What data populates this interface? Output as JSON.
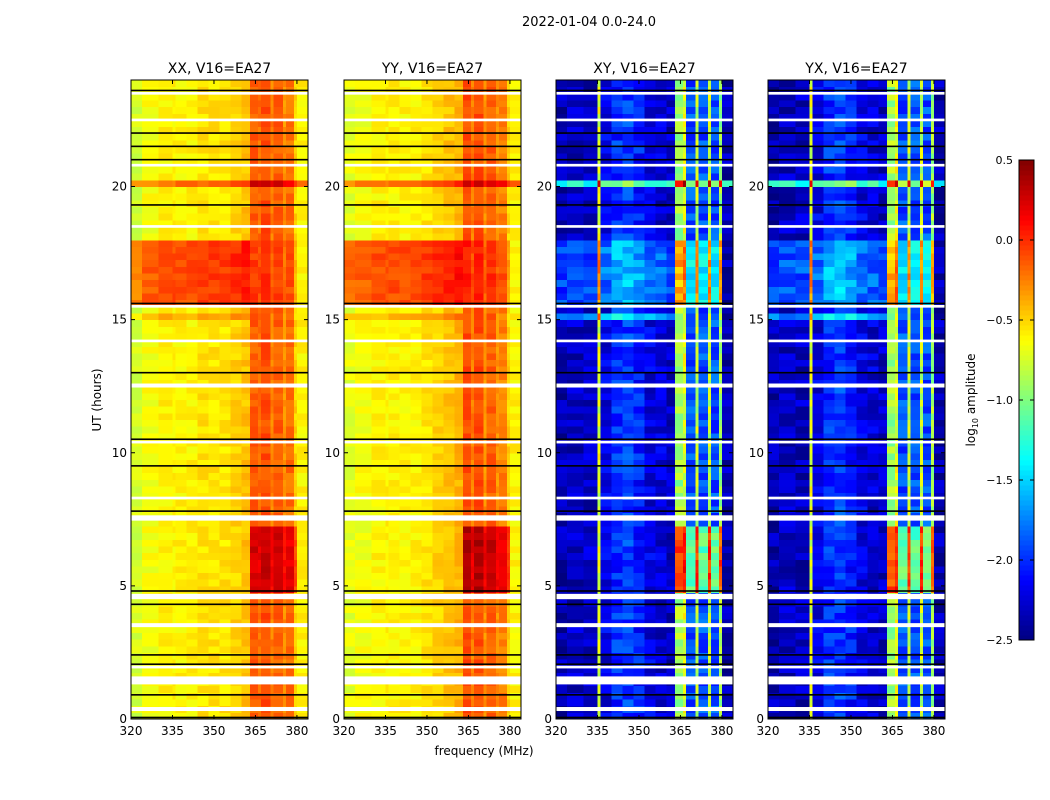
{
  "chart_data": {
    "type": "heatmap",
    "title": "2022-01-04 0.0-24.0",
    "xlabel": "frequency (MHz)",
    "ylabel": "UT (hours)",
    "xlim": [
      320,
      384
    ],
    "ylim": [
      0,
      24
    ],
    "xticks": [
      320,
      335,
      350,
      365,
      380
    ],
    "yticks": [
      0,
      5,
      10,
      15,
      20
    ],
    "colorbar": {
      "label_main": "log",
      "label_sub": "10",
      "label_rest": " amplitude",
      "vmin": -2.5,
      "vmax": 0.5,
      "cmap": "jet",
      "ticks": [
        0.5,
        0.0,
        -0.5,
        -1.0,
        -1.5,
        -2.0,
        -2.5
      ],
      "tick_labels": [
        "0.5",
        "0.0",
        "−0.5",
        "−1.0",
        "−1.5",
        "−2.0",
        "−2.5"
      ]
    },
    "time_step_hours": 0.25,
    "freq_edges": [
      320,
      324,
      330,
      335,
      336,
      340,
      344,
      348,
      352,
      356,
      360,
      363,
      366,
      367,
      370.5,
      371.5,
      375,
      376,
      379,
      380,
      384
    ],
    "panels": [
      {
        "title": "XX, V16=EA27",
        "base": [
          -0.75,
          -0.65,
          -0.6,
          -0.6,
          -0.6,
          -0.6,
          -0.55,
          -0.55,
          -0.55,
          -0.5,
          -0.45,
          -0.15,
          -0.2,
          -0.1,
          -0.25,
          -0.15,
          -0.3,
          -0.2,
          -0.5,
          -0.6
        ]
      },
      {
        "title": "YY, V16=EA27",
        "base": [
          -0.7,
          -0.65,
          -0.6,
          -0.6,
          -0.6,
          -0.6,
          -0.6,
          -0.55,
          -0.5,
          -0.45,
          -0.4,
          -0.1,
          -0.25,
          -0.1,
          -0.3,
          -0.15,
          -0.3,
          -0.25,
          -0.5,
          -0.6
        ]
      },
      {
        "title": "XY, V16=EA27",
        "base": [
          -2.35,
          -2.3,
          -2.3,
          -0.7,
          -2.2,
          -2.0,
          -1.95,
          -2.05,
          -2.2,
          -2.25,
          -2.3,
          -0.9,
          -0.7,
          -1.9,
          -0.8,
          -1.9,
          -0.8,
          -1.9,
          -0.9,
          -2.35
        ]
      },
      {
        "title": "YX, V16=EA27",
        "base": [
          -2.35,
          -2.3,
          -2.3,
          -0.7,
          -2.2,
          -2.0,
          -1.95,
          -2.05,
          -2.2,
          -2.25,
          -2.3,
          -0.9,
          -0.7,
          -1.9,
          -0.8,
          -1.9,
          -0.8,
          -1.9,
          -0.9,
          -2.35
        ]
      }
    ],
    "events": [
      {
        "t": [
          15.5,
          18.0
        ],
        "f": [
          320,
          362
        ],
        "delta": [
          0.5,
          0.5,
          0.4,
          0.4
        ]
      },
      {
        "t": [
          15.5,
          18.0
        ],
        "f": [
          362,
          381
        ],
        "delta": [
          0.1,
          0.15,
          0.5,
          0.5
        ]
      },
      {
        "t": [
          4.8,
          7.3
        ],
        "f": [
          362,
          381
        ],
        "delta": [
          0.4,
          0.45,
          0.8,
          0.8
        ]
      },
      {
        "t": [
          19.9,
          20.15
        ],
        "f": [
          320,
          384
        ],
        "delta": [
          0.4,
          0.4,
          1.0,
          1.0
        ]
      },
      {
        "t": [
          14.9,
          15.25
        ],
        "f": [
          320,
          362
        ],
        "delta": [
          0.2,
          0.2,
          0.6,
          0.6
        ]
      }
    ],
    "flagged_hours": [
      [
        0.3,
        0.45
      ],
      [
        1.3,
        1.6
      ],
      [
        1.9,
        2.0
      ],
      [
        3.45,
        3.6
      ],
      [
        4.5,
        4.7
      ],
      [
        7.45,
        7.65
      ],
      [
        8.25,
        8.35
      ],
      [
        10.35,
        10.45
      ],
      [
        12.45,
        12.6
      ],
      [
        14.15,
        14.25
      ],
      [
        15.45,
        15.55
      ],
      [
        18.45,
        18.55
      ],
      [
        20.75,
        20.85
      ],
      [
        22.45,
        22.55
      ],
      [
        23.45,
        23.55
      ]
    ],
    "black_rows_hours": [
      0.05,
      0.9,
      2.05,
      2.4,
      4.3,
      4.8,
      7.8,
      9.5,
      10.5,
      13.0,
      15.6,
      19.3,
      21.0,
      21.5,
      22.0,
      23.6
    ]
  }
}
